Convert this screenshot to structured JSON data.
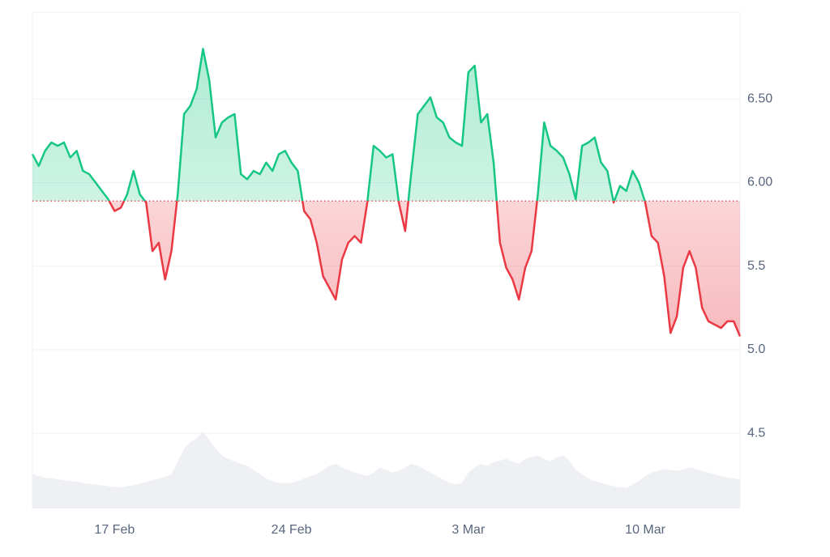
{
  "chart_data": {
    "type": "line",
    "categories": [
      null,
      null,
      null,
      null,
      null,
      null,
      null,
      null,
      null,
      null,
      null,
      null,
      null,
      "17 Feb",
      null,
      null,
      null,
      null,
      null,
      null,
      null,
      null,
      null,
      null,
      null,
      null,
      null,
      null,
      null,
      null,
      null,
      null,
      null,
      null,
      null,
      null,
      null,
      null,
      null,
      null,
      null,
      "24 Feb",
      null,
      null,
      null,
      null,
      null,
      null,
      null,
      null,
      null,
      null,
      null,
      null,
      null,
      null,
      null,
      null,
      null,
      null,
      null,
      null,
      null,
      null,
      null,
      null,
      null,
      null,
      null,
      "3 Mar",
      null,
      null,
      null,
      null,
      null,
      null,
      null,
      null,
      null,
      null,
      null,
      null,
      null,
      null,
      null,
      null,
      null,
      null,
      null,
      null,
      null,
      null,
      null,
      null,
      null,
      null,
      null,
      "10 Mar",
      null,
      null,
      null,
      null,
      null,
      null,
      null,
      null,
      null,
      null,
      null,
      null,
      null,
      null,
      null
    ],
    "values": [
      6.17,
      6.1,
      6.19,
      6.24,
      6.22,
      6.24,
      6.15,
      6.19,
      6.07,
      6.05,
      6.0,
      5.95,
      5.9,
      5.83,
      5.85,
      5.93,
      6.07,
      5.93,
      5.88,
      5.59,
      5.64,
      5.42,
      5.59,
      5.93,
      6.41,
      6.46,
      6.56,
      6.8,
      6.61,
      6.27,
      6.36,
      6.39,
      6.41,
      6.05,
      6.02,
      6.07,
      6.05,
      6.12,
      6.07,
      6.17,
      6.19,
      6.12,
      6.07,
      5.83,
      5.78,
      5.64,
      5.44,
      5.37,
      5.3,
      5.54,
      5.64,
      5.68,
      5.64,
      5.88,
      6.22,
      6.19,
      6.15,
      6.17,
      5.88,
      5.71,
      6.07,
      6.41,
      6.46,
      6.51,
      6.39,
      6.36,
      6.27,
      6.24,
      6.22,
      6.66,
      6.7,
      6.36,
      6.41,
      6.12,
      5.64,
      5.49,
      5.42,
      5.3,
      5.49,
      5.59,
      5.93,
      6.36,
      6.22,
      6.19,
      6.15,
      6.05,
      5.9,
      6.22,
      6.24,
      6.27,
      6.12,
      6.07,
      5.88,
      5.98,
      5.95,
      6.07,
      6.0,
      5.88,
      5.68,
      5.64,
      5.44,
      5.1,
      5.2,
      5.49,
      5.59,
      5.49,
      5.25,
      5.17,
      5.15,
      5.13,
      5.17,
      5.17,
      5.08
    ],
    "baseline": 5.89,
    "color_up": "#16c784",
    "color_down": "#ea3943",
    "volume": [
      40,
      38,
      36,
      35,
      34,
      33,
      32,
      31,
      30,
      29,
      28,
      27,
      26,
      25,
      25,
      26,
      27,
      29,
      31,
      33,
      35,
      37,
      40,
      55,
      70,
      78,
      82,
      90,
      80,
      70,
      62,
      58,
      55,
      52,
      50,
      45,
      40,
      35,
      32,
      30,
      30,
      30,
      32,
      35,
      38,
      40,
      45,
      50,
      52,
      48,
      45,
      42,
      40,
      38,
      42,
      48,
      45,
      42,
      44,
      48,
      52,
      50,
      46,
      42,
      38,
      34,
      30,
      28,
      30,
      42,
      48,
      52,
      50,
      54,
      56,
      58,
      55,
      52,
      58,
      60,
      62,
      58,
      55,
      60,
      62,
      56,
      45,
      40,
      35,
      32,
      30,
      28,
      26,
      25,
      24,
      28,
      32,
      38,
      42,
      44,
      46,
      45,
      44,
      46,
      48,
      46,
      44,
      42,
      40,
      38,
      36,
      35,
      34
    ],
    "volume_color": "#eef0f3",
    "ylim": [
      4.05,
      7.02
    ],
    "yticks": [
      4.5,
      {
        "value": 5,
        "label": "5.0"
      },
      5.5,
      {
        "value": 6,
        "label": "6.00"
      },
      {
        "value": 6.5,
        "label": "6.50"
      }
    ],
    "grid": true
  }
}
